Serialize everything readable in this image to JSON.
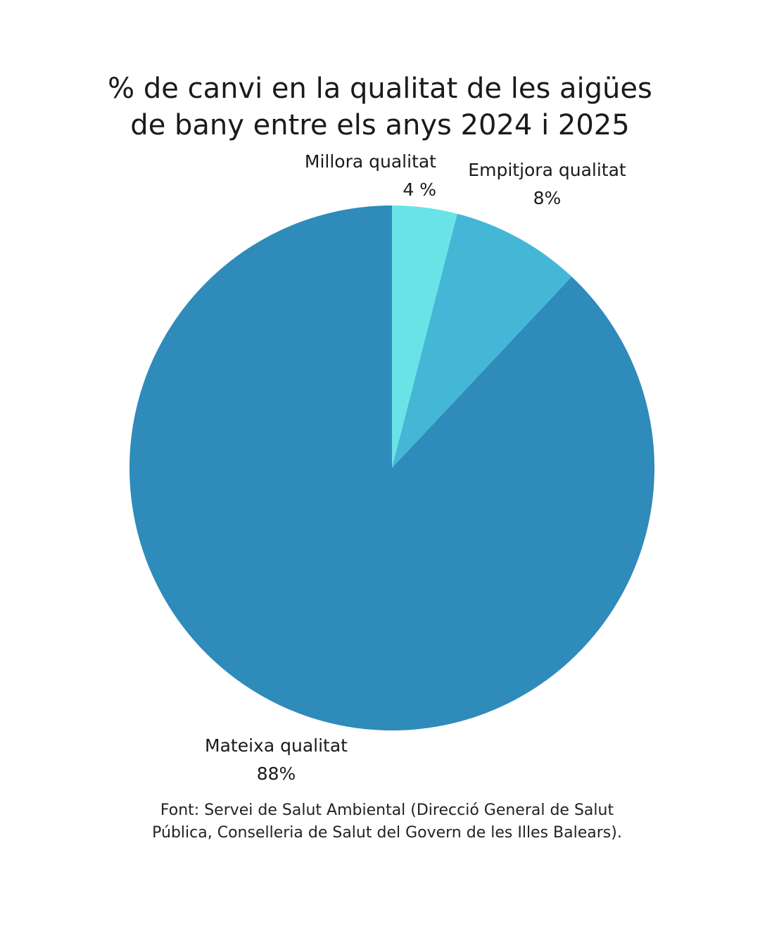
{
  "title": {
    "line1": "% de canvi en la qualitat de les aigües",
    "line2": "de bany entre els anys 2024 i 2025"
  },
  "chart_data": {
    "type": "pie",
    "title": "% de canvi en la qualitat de les aigües de bany entre els anys 2024 i 2025",
    "slices": [
      {
        "name": "Millora qualitat",
        "value": 4,
        "value_label": "4 %",
        "color": "#6ae3e7"
      },
      {
        "name": "Empitjora qualitat",
        "value": 8,
        "value_label": "8%",
        "color": "#44b7d7"
      },
      {
        "name": "Mateixa qualitat",
        "value": 88,
        "value_label": "88%",
        "color": "#2e8bba"
      }
    ],
    "start": "12 o'clock",
    "direction": "clockwise"
  },
  "source": {
    "line1": "Font: Servei de Salut Ambiental (Direcció General de Salut",
    "line2": "Pública, Conselleria de Salut del Govern de les Illes Balears)."
  }
}
